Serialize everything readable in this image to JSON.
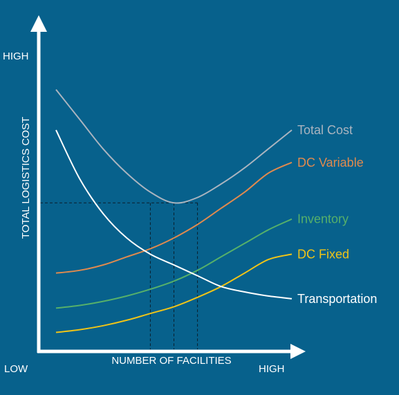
{
  "chart_data": {
    "type": "line",
    "title": "",
    "xlabel": "NUMBER OF FACILITIES",
    "ylabel": "TOTAL LOGISTICS COST",
    "x_low_label": "LOW",
    "x_high_label": "HIGH",
    "y_high_label": "HIGH",
    "x": [
      0,
      1,
      2,
      3,
      4,
      5,
      6,
      7,
      8,
      9,
      10
    ],
    "xlim": [
      0,
      10
    ],
    "ylim": [
      0,
      10
    ],
    "grid": false,
    "legend": "labels at line ends (right)",
    "optimum_guides": {
      "x": [
        4,
        5,
        6
      ],
      "y": 5.3
    },
    "series": [
      {
        "name": "Total Cost",
        "color": "#aab4bf",
        "values": [
          9.5,
          8.4,
          7.3,
          6.4,
          5.7,
          5.3,
          5.5,
          6.0,
          6.6,
          7.3,
          8.0
        ]
      },
      {
        "name": "DC Variable",
        "color": "#e08a4e",
        "values": [
          2.7,
          2.8,
          3.0,
          3.3,
          3.6,
          4.0,
          4.5,
          5.1,
          5.7,
          6.4,
          6.8
        ]
      },
      {
        "name": "Inventory",
        "color": "#56b06a",
        "values": [
          1.4,
          1.5,
          1.65,
          1.85,
          2.1,
          2.4,
          2.8,
          3.3,
          3.8,
          4.3,
          4.7
        ]
      },
      {
        "name": "DC Fixed",
        "color": "#f0c417",
        "values": [
          0.5,
          0.6,
          0.75,
          0.95,
          1.2,
          1.45,
          1.8,
          2.2,
          2.7,
          3.2,
          3.4
        ]
      },
      {
        "name": "Transportation",
        "color": "#ffffff",
        "values": [
          8.0,
          6.2,
          4.9,
          4.0,
          3.4,
          3.0,
          2.6,
          2.2,
          2.0,
          1.85,
          1.75
        ]
      }
    ]
  }
}
